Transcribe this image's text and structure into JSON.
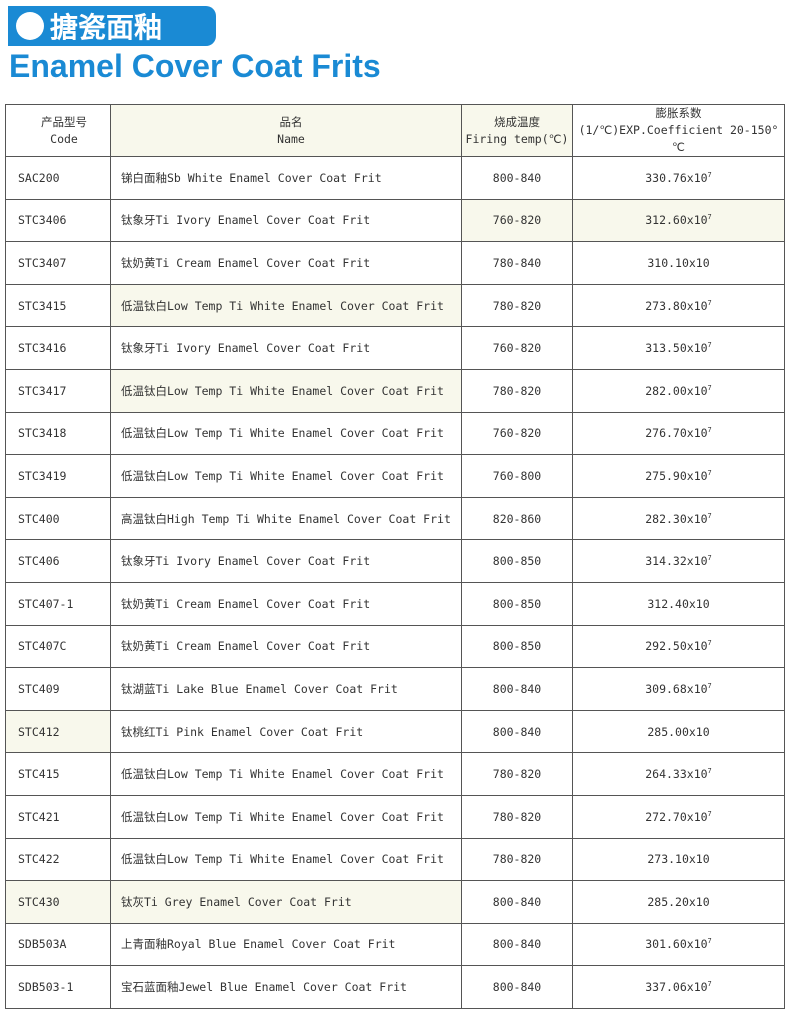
{
  "banner": {
    "title_cn": "搪瓷面釉",
    "accent": "#1a8ad4"
  },
  "title": "Enamel Cover Coat Frits",
  "table": {
    "headers": [
      {
        "cn": "产品型号",
        "en": "Code"
      },
      {
        "cn": "品名",
        "en": "Name"
      },
      {
        "cn": "烧成温度",
        "en": "Firing temp(℃)"
      },
      {
        "cn": "膨胀系数",
        "en": "(1/℃)EXP.Coefficient 20-150° ℃"
      }
    ],
    "rows": [
      {
        "code": "SAC200",
        "name": "锑白面釉Sb White Enamel Cover Coat Frit",
        "temp": "800-840",
        "coef": "330.76x10",
        "exp": "7"
      },
      {
        "code": "STC3406",
        "name": "钛象牙Ti Ivory Enamel Cover Coat Frit",
        "temp": "760-820",
        "coef": "312.60x10",
        "exp": "7"
      },
      {
        "code": "STC3407",
        "name": "钛奶黄Ti Cream Enamel Cover Coat Frit",
        "temp": "780-840",
        "coef": "310.10x10",
        "exp": ""
      },
      {
        "code": "STC3415",
        "name": "低温钛白Low Temp Ti White Enamel Cover Coat Frit",
        "temp": "780-820",
        "coef": "273.80x10",
        "exp": "7"
      },
      {
        "code": "STC3416",
        "name": "钛象牙Ti Ivory Enamel Cover Coat Frit",
        "temp": "760-820",
        "coef": "313.50x10",
        "exp": "7"
      },
      {
        "code": "STC3417",
        "name": "低温钛白Low Temp Ti White Enamel Cover Coat Frit",
        "temp": "780-820",
        "coef": "282.00x10",
        "exp": "7"
      },
      {
        "code": "STC3418",
        "name": "低温钛白Low Temp Ti White Enamel Cover Coat Frit",
        "temp": "760-820",
        "coef": "276.70x10",
        "exp": "7"
      },
      {
        "code": "STC3419",
        "name": "低温钛白Low Temp Ti White Enamel Cover Coat Frit",
        "temp": "760-800",
        "coef": "275.90x10",
        "exp": "7"
      },
      {
        "code": "STC400",
        "name": "高温钛白High Temp Ti White Enamel Cover Coat Frit",
        "temp": "820-860",
        "coef": "282.30x10",
        "exp": "7"
      },
      {
        "code": "STC406",
        "name": "钛象牙Ti Ivory Enamel Cover Coat Frit",
        "temp": "800-850",
        "coef": "314.32x10",
        "exp": "7"
      },
      {
        "code": "STC407-1",
        "name": "钛奶黄Ti Cream Enamel Cover Coat Frit",
        "temp": "800-850",
        "coef": "312.40x10",
        "exp": ""
      },
      {
        "code": "STC407C",
        "name": "钛奶黄Ti Cream Enamel Cover Coat Frit",
        "temp": "800-850",
        "coef": "292.50x10",
        "exp": "7"
      },
      {
        "code": "STC409",
        "name": "钛湖蓝Ti Lake Blue Enamel Cover Coat Frit",
        "temp": "800-840",
        "coef": "309.68x10",
        "exp": "7"
      },
      {
        "code": "STC412",
        "name": "钛桃红Ti Pink Enamel Cover Coat Frit",
        "temp": "800-840",
        "coef": "285.00x10",
        "exp": ""
      },
      {
        "code": "STC415",
        "name": "低温钛白Low Temp Ti White Enamel Cover Coat Frit",
        "temp": "780-820",
        "coef": "264.33x10",
        "exp": "7"
      },
      {
        "code": "STC421",
        "name": "低温钛白Low Temp Ti White Enamel Cover Coat Frit",
        "temp": "780-820",
        "coef": "272.70x10",
        "exp": "7"
      },
      {
        "code": "STC422",
        "name": "低温钛白Low Temp Ti White Enamel Cover Coat Frit",
        "temp": "780-820",
        "coef": "273.10x10",
        "exp": ""
      },
      {
        "code": "STC430",
        "name": "钛灰Ti Grey Enamel Cover Coat Frit",
        "temp": "800-840",
        "coef": "285.20x10",
        "exp": ""
      },
      {
        "code": "SDB503A",
        "name": "上青面釉Royal Blue Enamel Cover Coat Frit",
        "temp": "800-840",
        "coef": "301.60x10",
        "exp": "7"
      },
      {
        "code": "SDB503-1",
        "name": "宝石蓝面釉Jewel Blue Enamel Cover Coat Frit",
        "temp": "800-840",
        "coef": "337.06x10",
        "exp": "7"
      }
    ]
  }
}
